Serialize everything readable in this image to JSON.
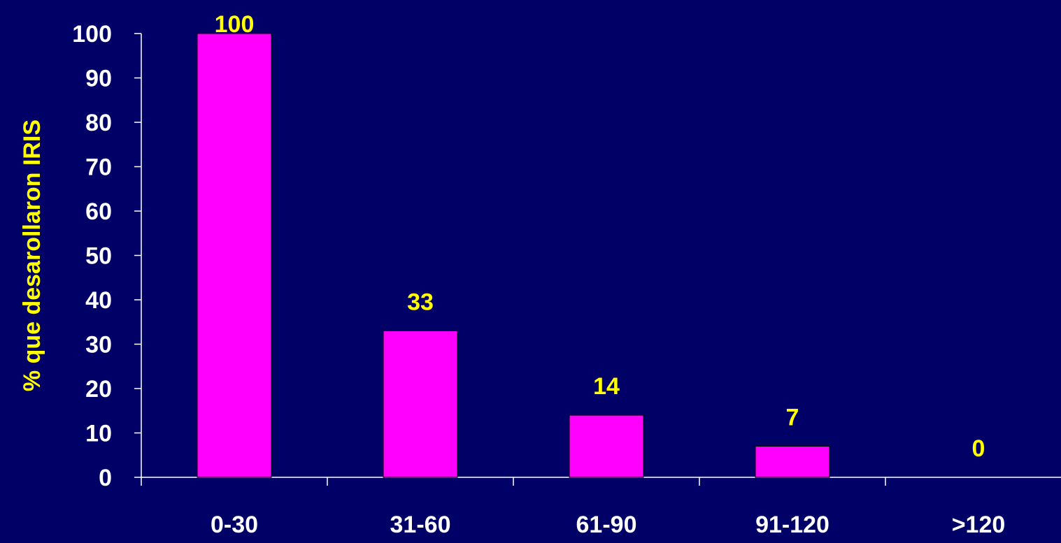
{
  "chart_data": {
    "type": "bar",
    "title": "",
    "xlabel": "",
    "ylabel": "% que desarollaron IRIS",
    "categories": [
      "0-30",
      "31-60",
      "61-90",
      "91-120",
      ">120"
    ],
    "values": [
      100,
      33,
      14,
      7,
      0
    ],
    "data_labels": [
      "100",
      "33",
      "14",
      "7",
      "0"
    ],
    "yticks": [
      "0",
      "10",
      "20",
      "30",
      "40",
      "50",
      "60",
      "70",
      "80",
      "90",
      "100"
    ],
    "ylim": [
      0,
      100
    ],
    "grid": false,
    "legend": "none"
  },
  "colors": {
    "background": "#000066",
    "bar": "#ff00ff",
    "axis": "#ffffff",
    "label_text": "#ffff00",
    "tick_text": "#ffffff"
  }
}
